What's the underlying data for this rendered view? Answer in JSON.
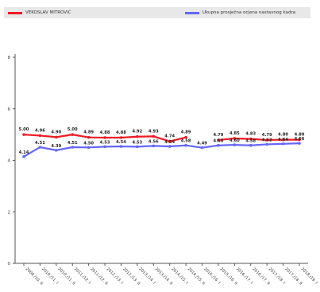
{
  "chart_data": {
    "type": "line",
    "title": "",
    "xlabel": "",
    "ylabel": "",
    "ylim": [
      0,
      8
    ],
    "yticks": [
      "0",
      "2",
      "4",
      "6",
      "8"
    ],
    "grid": false,
    "legend_placement": "top",
    "categories": [
      "2009./10. II",
      "2010./11. I",
      "2010./11. II",
      "2011./12. I",
      "2011./12. II",
      "2012./13. I",
      "2012./13. II",
      "2013./14. I",
      "2013./14. II",
      "2014./15. I",
      "2014./15. II",
      "2015./16. I",
      "2015./16. II",
      "2016./17. I",
      "2016./17. II",
      "2017./18. I",
      "2017./18. II",
      "2018./19. I"
    ],
    "series": [
      {
        "name": "VEKOSLAV MITROVIĆ",
        "color": "#ee1c24",
        "values": [
          5.0,
          4.96,
          4.9,
          5.0,
          4.89,
          4.88,
          4.88,
          4.92,
          4.93,
          4.74,
          4.89,
          null,
          4.79,
          4.85,
          4.83,
          4.79,
          4.8,
          4.8
        ],
        "labels": [
          "5.00",
          "4.96",
          "4.90",
          "5.00",
          "4.89",
          "4.88",
          "4.88",
          "4.92",
          "4.93",
          "4.74",
          "4.89",
          "",
          "4.79",
          "4.85",
          "4.83",
          "4.79",
          "4.80",
          "4.80"
        ]
      },
      {
        "name": "Ukupna prosječna ocjena nastavnog kadra",
        "color": "#6666ff",
        "values": [
          4.14,
          4.51,
          4.39,
          4.51,
          4.5,
          4.53,
          4.54,
          4.53,
          4.56,
          4.54,
          4.58,
          4.49,
          4.58,
          4.6,
          4.58,
          4.62,
          4.64,
          4.66
        ],
        "labels": [
          "4.14",
          "4.51",
          "4.39",
          "4.51",
          "4.50",
          "4.53",
          "4.54",
          "4.53",
          "4.56",
          "4.54",
          "4.58",
          "4.49",
          "4.58",
          "4.60",
          "4.58",
          "4.62",
          "4.64",
          "4.66"
        ]
      }
    ]
  }
}
